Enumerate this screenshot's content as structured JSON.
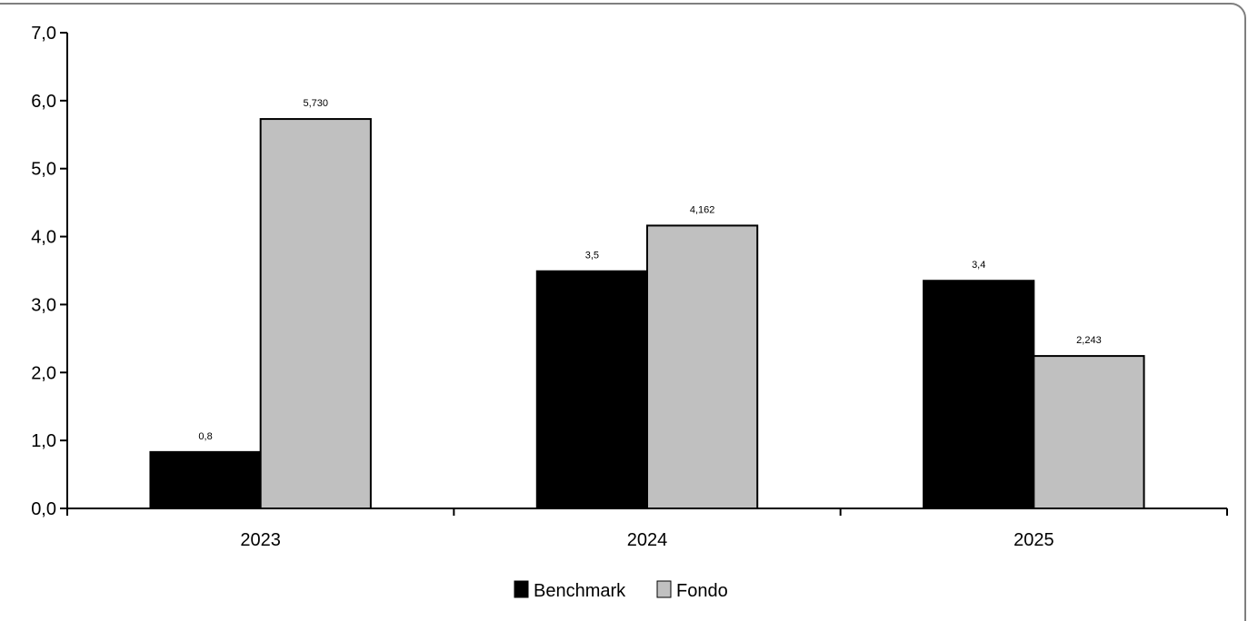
{
  "chart_data": {
    "type": "bar",
    "categories": [
      "2023",
      "2024",
      "2025"
    ],
    "series": [
      {
        "name": "Benchmark",
        "values": [
          0.83,
          3.49,
          3.35
        ],
        "labels": [
          "0,8",
          "3,5",
          "3,4"
        ],
        "color": "#000000"
      },
      {
        "name": "Fondo",
        "values": [
          5.73,
          4.162,
          2.243
        ],
        "labels": [
          "5,730",
          "4,162",
          "2,243"
        ],
        "color": "#c0c0c0"
      }
    ],
    "ylim": [
      0,
      7
    ],
    "yticks": [
      "0,0",
      "1,0",
      "2,0",
      "3,0",
      "4,0",
      "5,0",
      "6,0",
      "7,0"
    ],
    "grid": false,
    "legend_position": "bottom-center"
  }
}
